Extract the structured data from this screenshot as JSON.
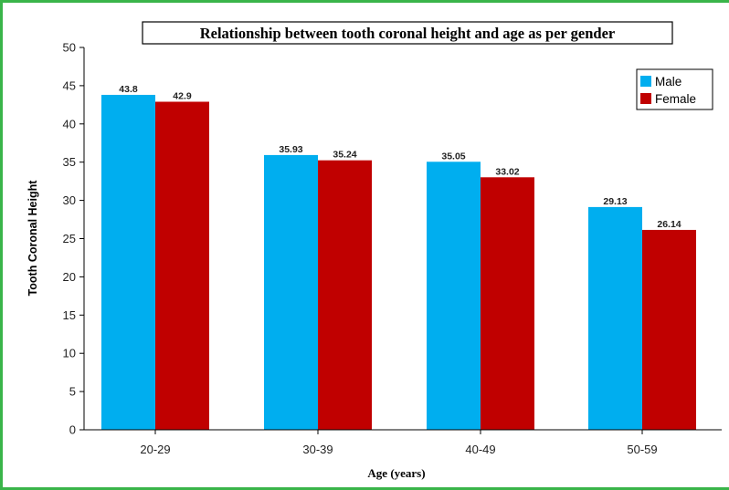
{
  "chart_data": {
    "type": "bar",
    "title": "Relationship between tooth coronal height and age as per gender",
    "xlabel": "Age (years)",
    "ylabel": "Tooth Coronal Height",
    "categories": [
      "20-29",
      "30-39",
      "40-49",
      "50-59"
    ],
    "series": [
      {
        "name": "Male",
        "color": "#00aeef",
        "values": [
          43.8,
          35.93,
          35.05,
          29.13
        ],
        "labels": [
          "43.8",
          "35.93",
          "35.05",
          "29.13"
        ]
      },
      {
        "name": "Female",
        "color": "#c00000",
        "values": [
          42.9,
          35.24,
          33.02,
          26.14
        ],
        "labels": [
          "42.9",
          "35.24",
          "33.02",
          "26.14"
        ]
      }
    ],
    "ylim": [
      0,
      50
    ],
    "yticks": [
      "0",
      "5",
      "10",
      "15",
      "20",
      "25",
      "30",
      "35",
      "40",
      "45",
      "50"
    ],
    "legend": "top-right",
    "grid": false
  }
}
